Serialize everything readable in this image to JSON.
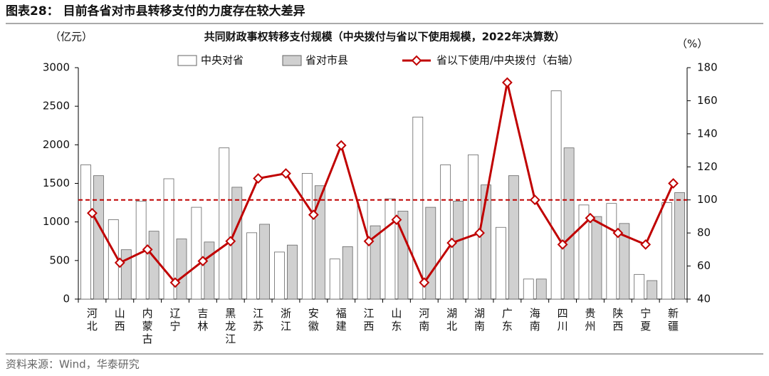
{
  "header": {
    "title": "图表28：  目前各省对市县转移支付的力度存在较大差异"
  },
  "chart_data": {
    "type": "bar",
    "title": "共同财政事权转移支付规模（中央拨付与省以下使用规模，2022年决算数）",
    "y_label": "（亿元）",
    "y2_label": "（%）",
    "categories": [
      "河北",
      "山西",
      "内蒙古",
      "辽宁",
      "吉林",
      "黑龙江",
      "江苏",
      "浙江",
      "安徽",
      "福建",
      "江西",
      "山东",
      "河南",
      "湖北",
      "湖南",
      "广东",
      "海南",
      "四川",
      "贵州",
      "陕西",
      "宁夏",
      "新疆"
    ],
    "series": [
      {
        "name": "中央对省",
        "type": "bar",
        "color": "#ffffff",
        "values": [
          1740,
          1030,
          1270,
          1560,
          1190,
          1960,
          860,
          610,
          1630,
          520,
          1280,
          1300,
          2360,
          1740,
          1870,
          930,
          260,
          2700,
          1220,
          1240,
          320,
          1250
        ]
      },
      {
        "name": "省对市县",
        "type": "bar",
        "color": "#d0d0d0",
        "values": [
          1600,
          640,
          880,
          780,
          740,
          1450,
          970,
          700,
          1470,
          680,
          950,
          1140,
          1190,
          1270,
          1480,
          1600,
          260,
          1960,
          1070,
          980,
          240,
          1380
        ]
      },
      {
        "name": "省以下使用/中央拨付（右轴）",
        "type": "line",
        "axis": "y2",
        "color": "#c00000",
        "values": [
          92,
          62,
          70,
          50,
          63,
          75,
          113,
          116,
          91,
          133,
          75,
          88,
          50,
          74,
          80,
          171,
          100,
          73,
          89,
          80,
          73,
          110
        ]
      }
    ],
    "reference_line": 100,
    "ylim": [
      0,
      3000
    ],
    "yticks": [
      0,
      500,
      1000,
      1500,
      2000,
      2500,
      3000
    ],
    "y2lim": [
      40,
      180
    ],
    "y2ticks": [
      40,
      60,
      80,
      100,
      120,
      140,
      160,
      180
    ]
  },
  "footer": {
    "source": "资料来源：Wind，华泰研究"
  }
}
